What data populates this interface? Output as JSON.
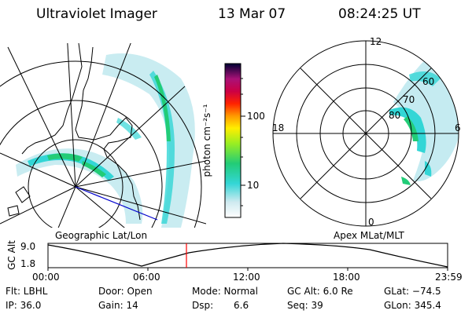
{
  "header": {
    "title": "Ultraviolet Imager",
    "date": "13 Mar 07",
    "time": "08:24:25 UT"
  },
  "colorbar": {
    "unit_label": "photon cm⁻²s⁻¹",
    "ticks": [
      "100",
      "10"
    ],
    "scale": "log"
  },
  "polar_plot": {
    "labels": {
      "top": "12",
      "left": "18",
      "right": "6",
      "bottom": "0"
    },
    "rings": [
      "60",
      "70",
      "80"
    ]
  },
  "projection_labels": {
    "left": "Geographic Lat/Lon",
    "right": "Apex MLat/MLT"
  },
  "altitude_plot": {
    "axis_label": "GC Alt",
    "y_ticks": [
      "9.0",
      "1.8"
    ],
    "x_ticks": [
      "00:00",
      "06:00",
      "12:00",
      "18:00",
      "23:59"
    ],
    "current_time_marker": "08:24"
  },
  "status": {
    "flt": "Flt: LBHL",
    "door": "Door: Open",
    "mode": "Mode: Normal",
    "gc_alt": "GC Alt: 6.0 Re",
    "glat": "GLat: −74.5",
    "ip": "IP: 36.0",
    "gain": "Gain: 14",
    "dsp_label": "Dsp:",
    "dsp_value": "6.6",
    "seq": "Seq: 39",
    "glon": "GLon: 345.4"
  },
  "colors": {
    "marker": "#ff0000",
    "grid": "#000000",
    "meridian": "#0000cc"
  }
}
